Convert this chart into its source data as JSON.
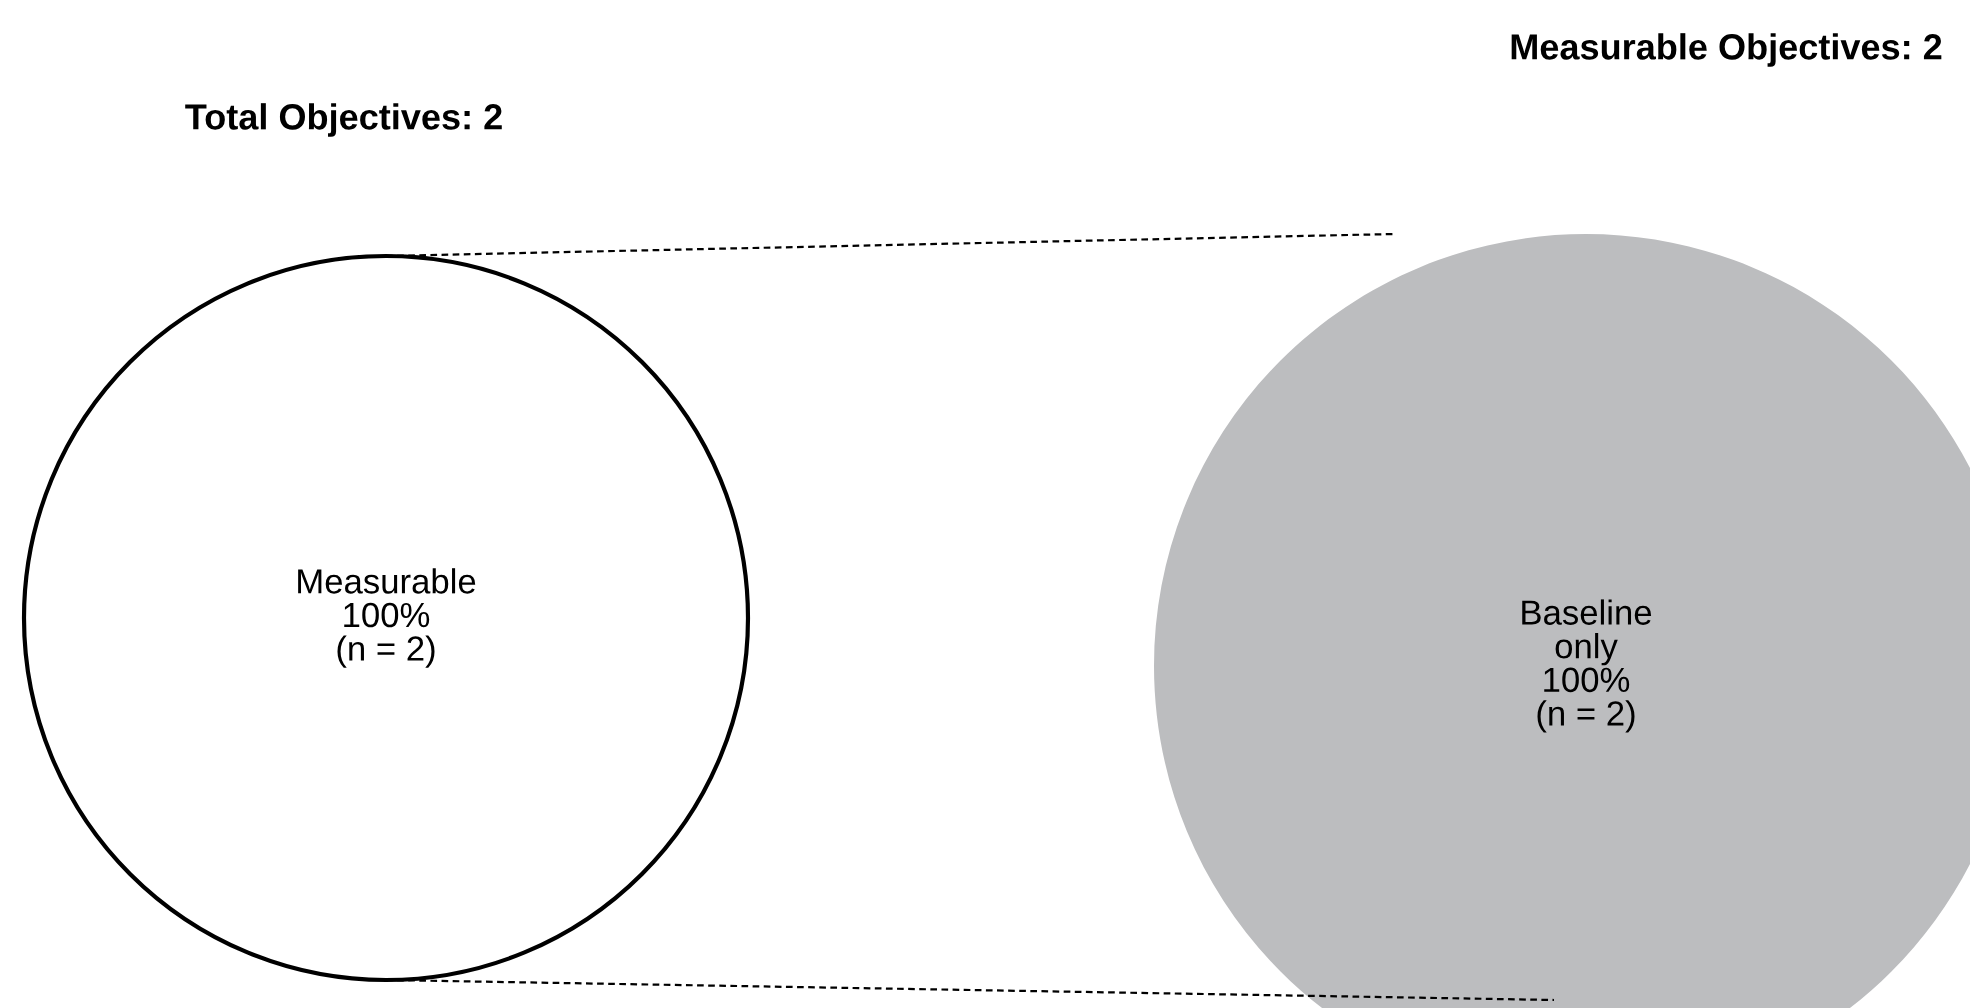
{
  "chart_data": [
    {
      "type": "pie",
      "title": "Total Objectives: 2",
      "categories": [
        "Measurable"
      ],
      "values": [
        100
      ],
      "colors": [
        "#ffffff"
      ],
      "value_labels": [
        "100%\n(n = 2)"
      ]
    },
    {
      "type": "pie",
      "title": "Measurable Objectives: 2",
      "categories": [
        "Baseline\nonly"
      ],
      "values": [
        100
      ],
      "colors": [
        "#bcbdbf"
      ],
      "value_labels": [
        "100%\n(n = 2)"
      ]
    }
  ]
}
